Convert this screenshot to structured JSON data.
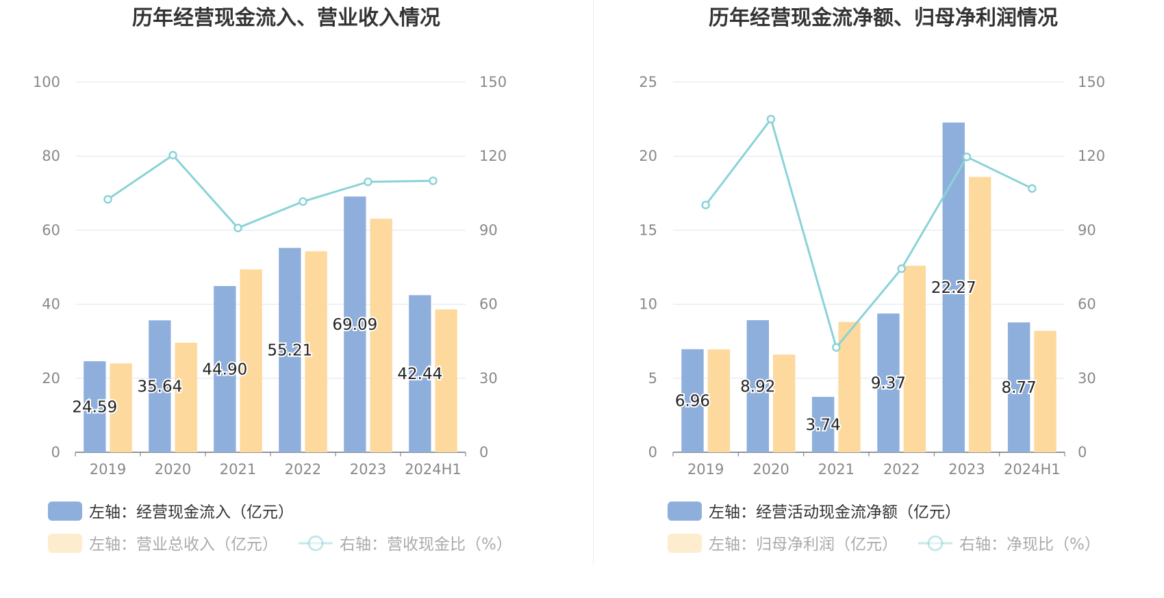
{
  "colors": {
    "bar_primary": "#8eaedc",
    "bar_secondary": "#fdd99d",
    "line": "#89d3d7",
    "axis_text": "#888888",
    "grid": "#dfe4f2",
    "title": "#333333",
    "legend_text": "#333333",
    "legend_text_faded": "#aaaaaa"
  },
  "chart_data": [
    {
      "type": "bar",
      "title": "历年经营现金流入、营业收入情况",
      "categories": [
        "2019",
        "2020",
        "2021",
        "2022",
        "2023",
        "2024H1"
      ],
      "left_axis": {
        "min": 0,
        "max": 100,
        "ticks": [
          "0",
          "20",
          "40",
          "60",
          "80",
          "100"
        ]
      },
      "right_axis": {
        "min": 0,
        "max": 150,
        "ticks": [
          "0",
          "30",
          "60",
          "90",
          "120",
          "150"
        ]
      },
      "bar_series": [
        {
          "name": "左轴：经营现金流入（亿元）",
          "values": [
            24.59,
            35.64,
            44.9,
            55.21,
            69.09,
            42.44
          ],
          "labels": [
            "24.59",
            "35.64",
            "44.90",
            "55.21",
            "69.09",
            "42.44"
          ],
          "faded": false
        },
        {
          "name": "左轴：营业总收入（亿元）",
          "values": [
            24.0,
            29.6,
            49.4,
            54.3,
            63.1,
            38.6
          ],
          "faded": true
        }
      ],
      "line_series": {
        "name": "右轴：营收现金比（%）",
        "values": [
          102.5,
          120.4,
          90.9,
          101.6,
          109.6,
          110.0
        ],
        "faded": true
      },
      "grid": true,
      "legend_position": "bottom-left"
    },
    {
      "type": "bar",
      "title": "历年经营现金流净额、归母净利润情况",
      "categories": [
        "2019",
        "2020",
        "2021",
        "2022",
        "2023",
        "2024H1"
      ],
      "left_axis": {
        "min": 0,
        "max": 25,
        "ticks": [
          "0",
          "5",
          "10",
          "15",
          "20",
          "25"
        ]
      },
      "right_axis": {
        "min": 0,
        "max": 150,
        "ticks": [
          "0",
          "30",
          "60",
          "90",
          "120",
          "150"
        ]
      },
      "bar_series": [
        {
          "name": "左轴：经营活动现金流净额（亿元）",
          "values": [
            6.96,
            8.92,
            3.74,
            9.37,
            22.27,
            8.77
          ],
          "labels": [
            "6.96",
            "8.92",
            "3.74",
            "9.37",
            "22.27",
            "8.77"
          ],
          "faded": false
        },
        {
          "name": "左轴：归母净利润（亿元）",
          "values": [
            6.95,
            6.6,
            8.8,
            12.6,
            18.6,
            8.2
          ],
          "faded": true
        }
      ],
      "line_series": {
        "name": "右轴：净现比（%）",
        "values": [
          100.2,
          135.0,
          42.5,
          74.4,
          119.7,
          106.9
        ],
        "faded": true
      },
      "grid": true,
      "legend_position": "bottom-left"
    }
  ]
}
